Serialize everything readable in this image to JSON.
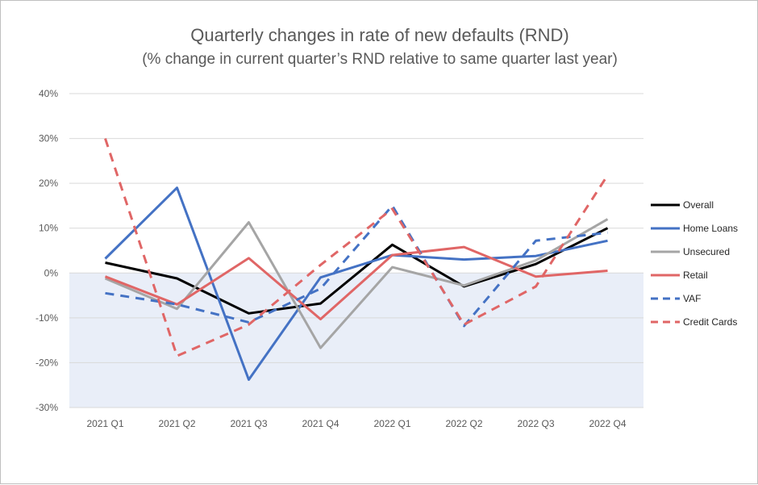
{
  "chart_data": {
    "type": "line",
    "title": "Quarterly changes in rate of new defaults (RND)",
    "subtitle": "(% change in current quarter’s RND relative to same quarter last year)",
    "categories": [
      "2021 Q1",
      "2021 Q2",
      "2021 Q3",
      "2021 Q4",
      "2022 Q1",
      "2022 Q2",
      "2022 Q3",
      "2022 Q4"
    ],
    "ylim": [
      -30,
      40
    ],
    "yticks": [
      40,
      30,
      20,
      10,
      0,
      -10,
      -20,
      -30
    ],
    "ytick_labels": [
      "40%",
      "30%",
      "20%",
      "10%",
      "0%",
      "-10%",
      "-20%",
      "-30%"
    ],
    "grid": true,
    "negative_region_shaded": true,
    "legend_position": "right",
    "series": [
      {
        "name": "Overall",
        "color": "#000000",
        "dash": false,
        "values": [
          2.3,
          -1.2,
          -9.0,
          -6.8,
          6.3,
          -3.0,
          2.0,
          10.0
        ]
      },
      {
        "name": "Home Loans",
        "color": "#4472C4",
        "dash": false,
        "values": [
          3.2,
          19.0,
          -23.8,
          -1.0,
          4.0,
          3.0,
          3.8,
          7.2
        ]
      },
      {
        "name": "Unsecured",
        "color": "#A5A5A5",
        "dash": false,
        "values": [
          -1.2,
          -8.0,
          11.3,
          -16.7,
          1.3,
          -2.8,
          2.8,
          12.0
        ]
      },
      {
        "name": "Retail",
        "color": "#E06666",
        "dash": false,
        "values": [
          -0.8,
          -7.0,
          3.3,
          -10.3,
          4.0,
          5.8,
          -0.8,
          0.5
        ]
      },
      {
        "name": "VAF",
        "color": "#4472C4",
        "dash": true,
        "values": [
          -4.5,
          -7.0,
          -11.0,
          -3.5,
          15.0,
          -11.8,
          7.2,
          9.0
        ]
      },
      {
        "name": "Credit Cards",
        "color": "#E06666",
        "dash": true,
        "values": [
          30.0,
          -18.5,
          -11.5,
          1.8,
          14.3,
          -11.5,
          -3.0,
          21.8
        ]
      }
    ]
  }
}
